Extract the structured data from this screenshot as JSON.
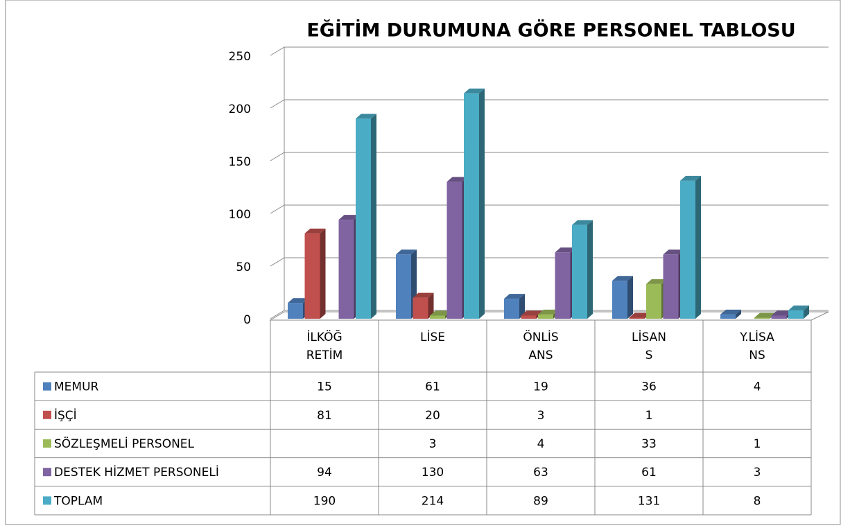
{
  "chart_data": {
    "type": "bar3d",
    "title": "EĞİTİM DURUMUNA GÖRE PERSONEL TABLOSU",
    "categories": [
      "İLKÖĞ\nRETİM",
      "LİSE",
      "ÖNLİS\nANS",
      "LİSAN\nS",
      "Y.LİSA\nNS"
    ],
    "series": [
      {
        "name": "MEMUR",
        "color": "#4f81bd",
        "values": [
          15,
          61,
          19,
          36,
          4
        ]
      },
      {
        "name": "İŞÇİ",
        "color": "#c0504d",
        "values": [
          81,
          20,
          3,
          1,
          null
        ]
      },
      {
        "name": "SÖZLEŞMELİ PERSONEL",
        "color": "#9bbb59",
        "values": [
          null,
          3,
          4,
          33,
          1
        ]
      },
      {
        "name": "DESTEK HİZMET PERSONELİ",
        "color": "#8064a2",
        "values": [
          94,
          130,
          63,
          61,
          3
        ]
      },
      {
        "name": "TOPLAM",
        "color": "#4bacc6",
        "values": [
          190,
          214,
          89,
          131,
          8
        ]
      }
    ],
    "ylim": [
      0,
      250
    ],
    "yticks": [
      0,
      50,
      100,
      150,
      200,
      250
    ],
    "grid": true
  }
}
